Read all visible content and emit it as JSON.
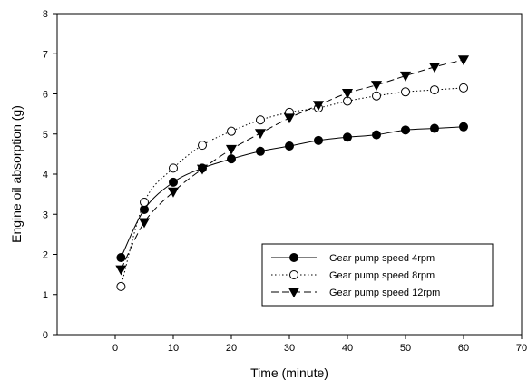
{
  "chart_data": {
    "type": "line",
    "title": "",
    "xlabel": "Time (minute)",
    "ylabel": "Engine oil absorption (g)",
    "xlim": [
      -10,
      70
    ],
    "ylim": [
      0,
      8
    ],
    "xticks": [
      0,
      10,
      20,
      30,
      40,
      50,
      60,
      70
    ],
    "yticks": [
      0,
      1,
      2,
      3,
      4,
      5,
      6,
      7,
      8
    ],
    "grid": false,
    "legend_position": "bottom-right",
    "x": [
      1,
      5,
      10,
      15,
      20,
      25,
      30,
      35,
      40,
      45,
      50,
      55,
      60
    ],
    "series": [
      {
        "name": "Gear pump speed 4rpm",
        "marker": "filled-circle",
        "line_style": "solid",
        "color": "#000000",
        "values": [
          1.92,
          3.12,
          3.8,
          4.15,
          4.38,
          4.57,
          4.7,
          4.84,
          4.92,
          4.98,
          5.1,
          5.14,
          5.18
        ]
      },
      {
        "name": "Gear pump speed 8rpm",
        "marker": "open-circle",
        "line_style": "dotted",
        "color": "#000000",
        "values": [
          1.2,
          3.3,
          4.15,
          4.72,
          5.07,
          5.35,
          5.54,
          5.65,
          5.82,
          5.95,
          6.05,
          6.1,
          6.15
        ]
      },
      {
        "name": "Gear pump speed 12rpm",
        "marker": "filled-triangle-down",
        "line_style": "dashed",
        "color": "#000000",
        "values": [
          1.62,
          2.8,
          3.56,
          4.13,
          4.62,
          5.02,
          5.4,
          5.72,
          6.02,
          6.22,
          6.45,
          6.67,
          6.85
        ]
      }
    ]
  }
}
